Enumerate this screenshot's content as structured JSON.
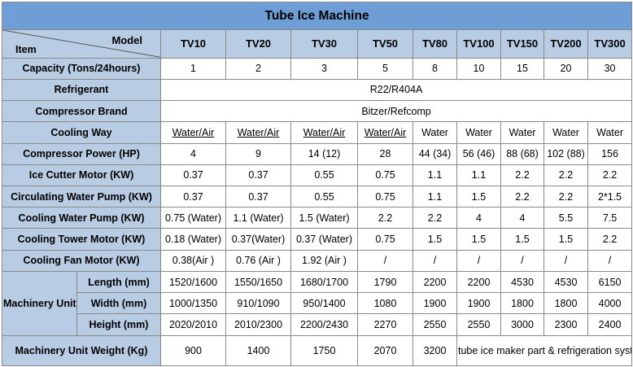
{
  "title": "Tube Ice Machine",
  "header": {
    "model_label": "Model",
    "item_label": "Item",
    "models": [
      "TV10",
      "TV20",
      "TV30",
      "TV50",
      "TV80",
      "TV100",
      "TV150",
      "TV200",
      "TV300"
    ]
  },
  "rows": {
    "capacity": {
      "label": "Capacity (Tons/24hours)",
      "values": [
        "1",
        "2",
        "3",
        "5",
        "8",
        "10",
        "15",
        "20",
        "30"
      ]
    },
    "refrigerant": {
      "label": "Refrigerant",
      "value": "R22/R404A"
    },
    "compressor_brand": {
      "label": "Compressor Brand",
      "value": "Bitzer/Refcomp"
    },
    "cooling_way": {
      "label": "Cooling Way",
      "values": [
        "Water/Air",
        "Water/Air",
        "Water/Air",
        "Water/Air",
        "Water",
        "Water",
        "Water",
        "Water",
        "Water"
      ]
    },
    "compressor_power": {
      "label": "Compressor Power (HP)",
      "values": [
        "4",
        "9",
        "14 (12)",
        "28",
        "44 (34)",
        "56 (46)",
        "88 (68)",
        "102 (88)",
        "156"
      ]
    },
    "ice_cutter_motor": {
      "label": "Ice Cutter Motor (KW)",
      "values": [
        "0.37",
        "0.37",
        "0.55",
        "0.75",
        "1.1",
        "1.1",
        "2.2",
        "2.2",
        "2.2"
      ]
    },
    "circulating_pump": {
      "label": "Circulating Water Pump (KW)",
      "values": [
        "0.37",
        "0.37",
        "0.55",
        "0.75",
        "1.1",
        "1.5",
        "2.2",
        "2.2",
        "2*1.5"
      ]
    },
    "cooling_pump": {
      "label": "Cooling Water Pump (KW)",
      "values": [
        "0.75 (Water)",
        "1.1 (Water)",
        "1.5 (Water)",
        "2.2",
        "2.2",
        "4",
        "4",
        "5.5",
        "7.5"
      ]
    },
    "cooling_tower": {
      "label": "Cooling Tower Motor (KW)",
      "values": [
        "0.18 (Water)",
        "0.37(Water)",
        "0.37 (Water)",
        "0.75",
        "1.5",
        "1.5",
        "1.5",
        "1.5",
        "2.2"
      ]
    },
    "cooling_fan": {
      "label": "Cooling Fan Motor (KW)",
      "values": [
        "0.38(Air )",
        "0.76 (Air )",
        "1.92 (Air )",
        "/",
        "/",
        "/",
        "/",
        "/",
        "/"
      ]
    }
  },
  "dimension": {
    "group_label": "Machinery Unit Dimension",
    "length": {
      "label": "Length (mm)",
      "values": [
        "1520/1600",
        "1550/1650",
        "1680/1700",
        "1790",
        "2200",
        "2200",
        "4530",
        "4530",
        "6150"
      ]
    },
    "width": {
      "label": "Width (mm)",
      "values": [
        "1000/1350",
        "910/1090",
        "950/1400",
        "1080",
        "1900",
        "1900",
        "1800",
        "1800",
        "4000"
      ]
    },
    "height": {
      "label": "Height (mm)",
      "values": [
        "2020/2010",
        "2010/2300",
        "2200/2430",
        "2270",
        "2550",
        "2550",
        "3000",
        "2300",
        "2400"
      ]
    }
  },
  "weight": {
    "label": "Machinery Unit Weight (Kg)",
    "values": [
      "900",
      "1400",
      "1750",
      "2070",
      "3200"
    ],
    "note": "tube ice maker part & refrigeration system are separate"
  }
}
